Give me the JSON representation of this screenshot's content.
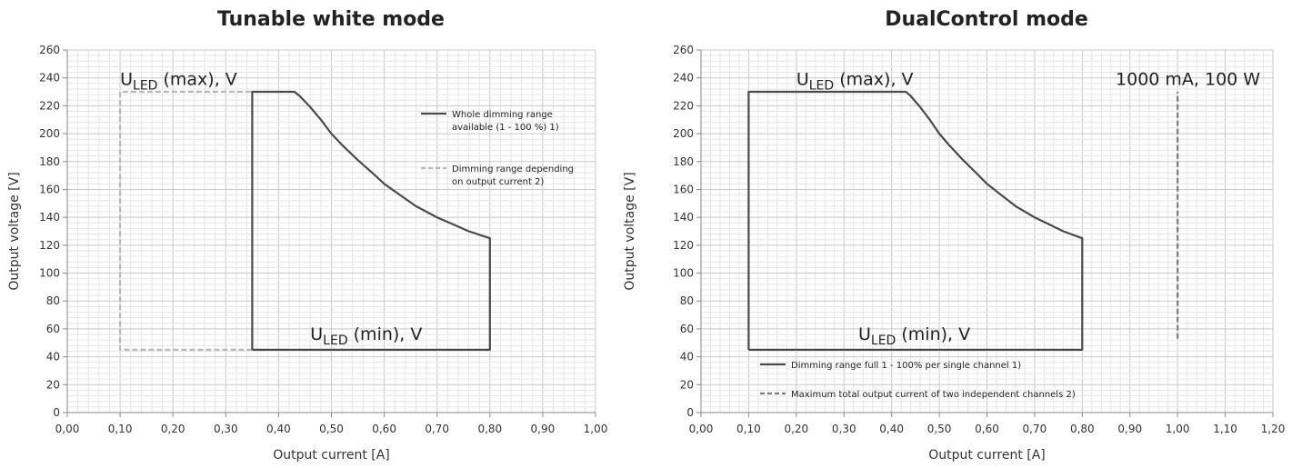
{
  "chart_data": [
    {
      "type": "line",
      "title": "Tunable white mode",
      "xlabel": "Output current [A]",
      "ylabel": "Output voltage [V]",
      "xlim": [
        0,
        1.0
      ],
      "ylim": [
        0,
        260
      ],
      "x_ticks": [
        "0,00",
        "0,10",
        "0,20",
        "0,30",
        "0,40",
        "0,50",
        "0,60",
        "0,70",
        "0,80",
        "0,90",
        "1,00"
      ],
      "y_ticks": [
        "0",
        "20",
        "40",
        "60",
        "80",
        "100",
        "120",
        "140",
        "160",
        "180",
        "200",
        "220",
        "240",
        "260"
      ],
      "grid": true,
      "legend_position": "right",
      "series": [
        {
          "name": "Whole dimming range available (1 - 100 %) 1)",
          "style": "solid",
          "color": "#4a4a4a",
          "points": [
            [
              0.35,
              45
            ],
            [
              0.35,
              230
            ],
            [
              0.43,
              230
            ],
            [
              0.44,
              227
            ],
            [
              0.46,
              219
            ],
            [
              0.48,
              210
            ],
            [
              0.5,
              200
            ],
            [
              0.52,
              192
            ],
            [
              0.55,
              181
            ],
            [
              0.58,
              171
            ],
            [
              0.6,
              164
            ],
            [
              0.63,
              156
            ],
            [
              0.66,
              148
            ],
            [
              0.7,
              140
            ],
            [
              0.73,
              135
            ],
            [
              0.76,
              130
            ],
            [
              0.8,
              125
            ],
            [
              0.8,
              45
            ],
            [
              0.35,
              45
            ]
          ]
        },
        {
          "name": "Dimming range depending on output current 2)",
          "style": "dashed",
          "color": "#b8b8b8",
          "points": [
            [
              0.35,
              45
            ],
            [
              0.1,
              45
            ],
            [
              0.1,
              230
            ],
            [
              0.35,
              230
            ]
          ]
        }
      ],
      "legend_lines": [
        [
          "Whole dimming range",
          "available (1 - 100 %) 1)"
        ],
        [
          "Dimming range depending",
          "on output current 2)"
        ]
      ],
      "annotations": [
        {
          "main": "U",
          "sub": "LED",
          "rest": " (max), V",
          "x": 0.1,
          "y": 235
        },
        {
          "main": "U",
          "sub": "LED",
          "rest": " (min), V",
          "x": 0.46,
          "y": 52
        }
      ]
    },
    {
      "type": "line",
      "title": "DualControl mode",
      "xlabel": "Output current [A]",
      "ylabel": "Output voltage [V]",
      "xlim": [
        0,
        1.2
      ],
      "ylim": [
        0,
        260
      ],
      "x_ticks": [
        "0,00",
        "0,10",
        "0,20",
        "0,30",
        "0,40",
        "0,50",
        "0,60",
        "0,70",
        "0,80",
        "0,90",
        "1,00",
        "1,10",
        "1,20"
      ],
      "y_ticks": [
        "0",
        "20",
        "40",
        "60",
        "80",
        "100",
        "120",
        "140",
        "160",
        "180",
        "200",
        "220",
        "240",
        "260"
      ],
      "grid": true,
      "legend_position": "bottom-left",
      "series": [
        {
          "name": "Dimming range full 1 - 100% per single channel 1)",
          "style": "solid",
          "color": "#4a4a4a",
          "points": [
            [
              0.1,
              45
            ],
            [
              0.1,
              230
            ],
            [
              0.43,
              230
            ],
            [
              0.44,
              227
            ],
            [
              0.46,
              219
            ],
            [
              0.48,
              210
            ],
            [
              0.5,
              200
            ],
            [
              0.52,
              192
            ],
            [
              0.55,
              181
            ],
            [
              0.58,
              171
            ],
            [
              0.6,
              164
            ],
            [
              0.63,
              156
            ],
            [
              0.66,
              148
            ],
            [
              0.7,
              140
            ],
            [
              0.73,
              135
            ],
            [
              0.76,
              130
            ],
            [
              0.8,
              125
            ],
            [
              0.8,
              45
            ],
            [
              0.1,
              45
            ]
          ]
        },
        {
          "name": "Maximum total output current of two independent channels 2)",
          "style": "dashed",
          "color": "#7a7a7a",
          "points": [
            [
              1.0,
              53
            ],
            [
              1.0,
              230
            ]
          ]
        }
      ],
      "legend_lines": [
        [
          "Dimming range full 1 - 100% per single channel 1)"
        ],
        [
          "Maximum total output current of two independent channels 2)"
        ]
      ],
      "annotations": [
        {
          "main": "U",
          "sub": "LED",
          "rest": " (max), V",
          "x": 0.2,
          "y": 235
        },
        {
          "main": "U",
          "sub": "LED",
          "rest": " (min), V",
          "x": 0.33,
          "y": 52
        },
        {
          "main": "1000 mA, 100 W",
          "sub": "",
          "rest": "",
          "x": 0.87,
          "y": 235
        }
      ]
    }
  ]
}
